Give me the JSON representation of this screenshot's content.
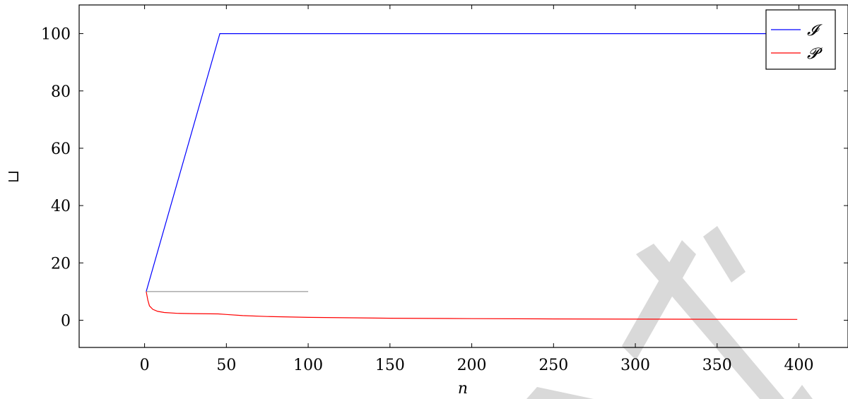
{
  "chart_data": {
    "type": "line",
    "title": "",
    "xlabel": "n",
    "ylabel": "⊔",
    "xlim": [
      -40,
      430
    ],
    "ylim": [
      -9.5,
      110
    ],
    "xticks": [
      0,
      50,
      100,
      150,
      200,
      250,
      300,
      350,
      400
    ],
    "yticks": [
      0,
      20,
      40,
      60,
      80,
      100
    ],
    "xtick_labels": [
      "0",
      "50",
      "100",
      "150",
      "200",
      "250",
      "300",
      "350",
      "400"
    ],
    "ytick_labels": [
      "0",
      "20",
      "40",
      "60",
      "80",
      "100"
    ],
    "grid": false,
    "legend_position": "top-right",
    "series": [
      {
        "name": "𝓘",
        "color": "#0000ff",
        "x": [
          1,
          46,
          399
        ],
        "y": [
          10,
          100,
          100
        ]
      },
      {
        "name": "𝓟",
        "color": "#ff0000",
        "x": [
          1,
          2,
          3,
          5,
          8,
          12,
          20,
          30,
          45,
          50,
          60,
          75,
          100,
          150,
          200,
          250,
          300,
          350,
          399
        ],
        "y": [
          10,
          7,
          5,
          3.8,
          3.1,
          2.7,
          2.4,
          2.3,
          2.2,
          2.0,
          1.6,
          1.3,
          1.0,
          0.7,
          0.55,
          0.45,
          0.38,
          0.32,
          0.28
        ]
      },
      {
        "color": "#808080",
        "x": [
          1,
          100
        ],
        "y": [
          10,
          10
        ]
      }
    ]
  }
}
